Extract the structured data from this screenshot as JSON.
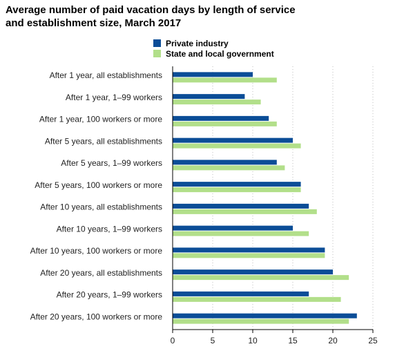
{
  "chart_data": {
    "type": "bar",
    "orientation": "horizontal",
    "title": "Average number of paid vacation days by length of service and establishment size, March 2017",
    "xlabel": "",
    "ylabel": "",
    "xlim": [
      0,
      25
    ],
    "xticks": [
      0,
      5,
      10,
      15,
      20,
      25
    ],
    "grid": "vertical-dotted",
    "legend_position": "top",
    "categories": [
      "After 1 year, all establishments",
      "After 1 year, 1–99 workers",
      "After 1 year, 100 workers or more",
      "After 5 years, all establishments",
      "After 5 years, 1–99 workers",
      "After 5 years, 100 workers or more",
      "After 10 years, all establishments",
      "After 10 years, 1–99 workers",
      "After 10 years, 100 workers or more",
      "After 20 years, all establishments",
      "After 20 years, 1–99 workers",
      "After 20 years, 100 workers or more"
    ],
    "series": [
      {
        "name": "Private industry",
        "color": "#0b4d97",
        "values": [
          10,
          9,
          12,
          15,
          13,
          16,
          17,
          15,
          19,
          20,
          17,
          23
        ]
      },
      {
        "name": "State and local government",
        "color": "#b2df8a",
        "values": [
          13,
          11,
          13,
          16,
          14,
          16,
          18,
          17,
          19,
          22,
          21,
          22
        ]
      }
    ]
  }
}
